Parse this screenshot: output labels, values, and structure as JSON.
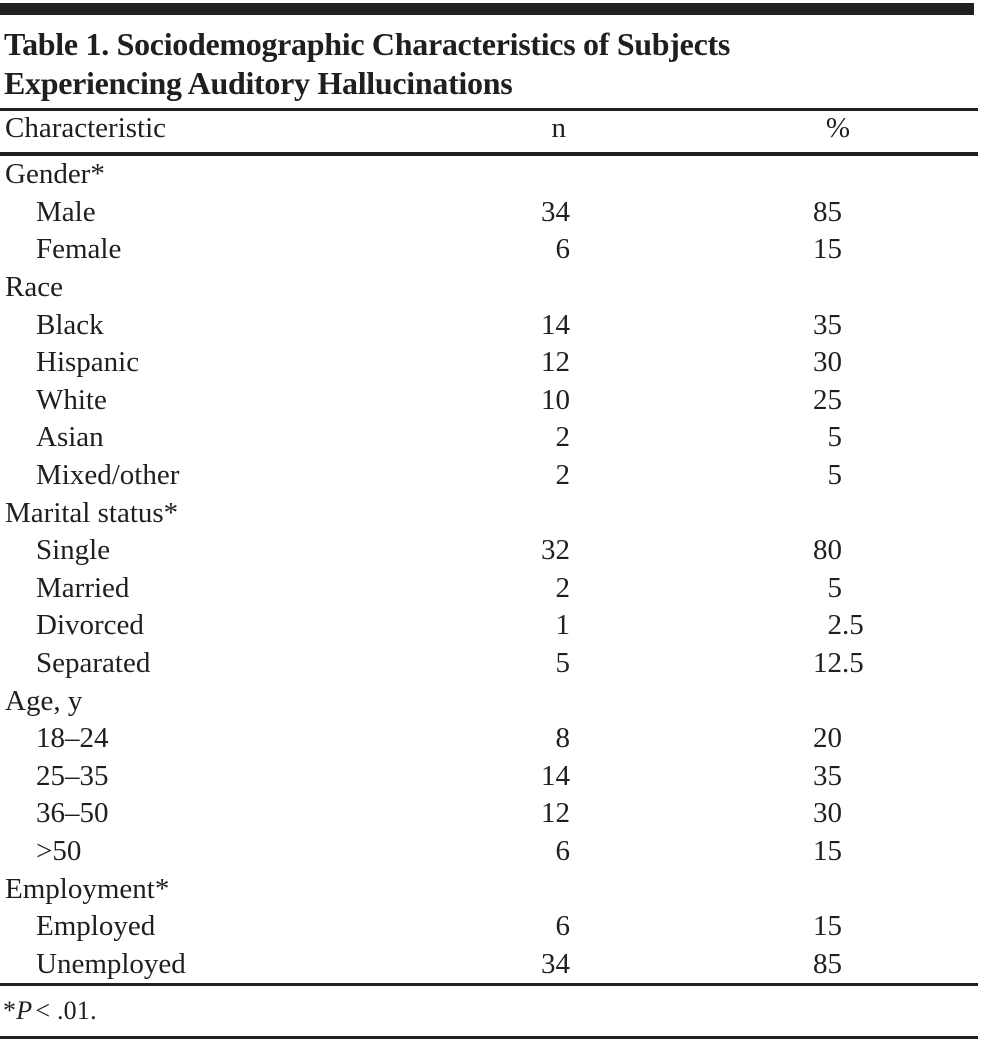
{
  "colors": {
    "ink": "#21201e",
    "background": "#ffffff"
  },
  "table": {
    "title_line1": "Table 1. Sociodemographic Characteristics of Subjects",
    "title_line2": "Experiencing Auditory Hallucinations",
    "headers": {
      "characteristic": "Characteristic",
      "n": "n",
      "percent": "%"
    },
    "rows": [
      {
        "type": "section",
        "label": "Gender*",
        "n": "",
        "pct_int": "",
        "pct_frac": ""
      },
      {
        "type": "item",
        "label": "Male",
        "n": "34",
        "pct_int": "85",
        "pct_frac": ""
      },
      {
        "type": "item",
        "label": "Female",
        "n": "6",
        "pct_int": "15",
        "pct_frac": ""
      },
      {
        "type": "section",
        "label": "Race",
        "n": "",
        "pct_int": "",
        "pct_frac": ""
      },
      {
        "type": "item",
        "label": "Black",
        "n": "14",
        "pct_int": "35",
        "pct_frac": ""
      },
      {
        "type": "item",
        "label": "Hispanic",
        "n": "12",
        "pct_int": "30",
        "pct_frac": ""
      },
      {
        "type": "item",
        "label": "White",
        "n": "10",
        "pct_int": "25",
        "pct_frac": ""
      },
      {
        "type": "item",
        "label": "Asian",
        "n": "2",
        "pct_int": "5",
        "pct_frac": ""
      },
      {
        "type": "item",
        "label": "Mixed/other",
        "n": "2",
        "pct_int": "5",
        "pct_frac": ""
      },
      {
        "type": "section",
        "label": "Marital status*",
        "n": "",
        "pct_int": "",
        "pct_frac": ""
      },
      {
        "type": "item",
        "label": "Single",
        "n": "32",
        "pct_int": "80",
        "pct_frac": ""
      },
      {
        "type": "item",
        "label": "Married",
        "n": "2",
        "pct_int": "5",
        "pct_frac": ""
      },
      {
        "type": "item",
        "label": "Divorced",
        "n": "1",
        "pct_int": "2",
        "pct_frac": ".5"
      },
      {
        "type": "item",
        "label": "Separated",
        "n": "5",
        "pct_int": "12",
        "pct_frac": ".5"
      },
      {
        "type": "section",
        "label": "Age, y",
        "n": "",
        "pct_int": "",
        "pct_frac": ""
      },
      {
        "type": "item",
        "label": "18–24",
        "n": "8",
        "pct_int": "20",
        "pct_frac": ""
      },
      {
        "type": "item",
        "label": "25–35",
        "n": "14",
        "pct_int": "35",
        "pct_frac": ""
      },
      {
        "type": "item",
        "label": "36–50",
        "n": "12",
        "pct_int": "30",
        "pct_frac": ""
      },
      {
        "type": "item",
        "label": ">50",
        "n": "6",
        "pct_int": "15",
        "pct_frac": ""
      },
      {
        "type": "section",
        "label": "Employment*",
        "n": "",
        "pct_int": "",
        "pct_frac": ""
      },
      {
        "type": "item",
        "label": "Employed",
        "n": "6",
        "pct_int": "15",
        "pct_frac": ""
      },
      {
        "type": "item",
        "label": "Unemployed",
        "n": "34",
        "pct_int": "85",
        "pct_frac": ""
      }
    ],
    "footnote": {
      "marker": "*",
      "italic": "P",
      "rest": "< .01."
    }
  }
}
